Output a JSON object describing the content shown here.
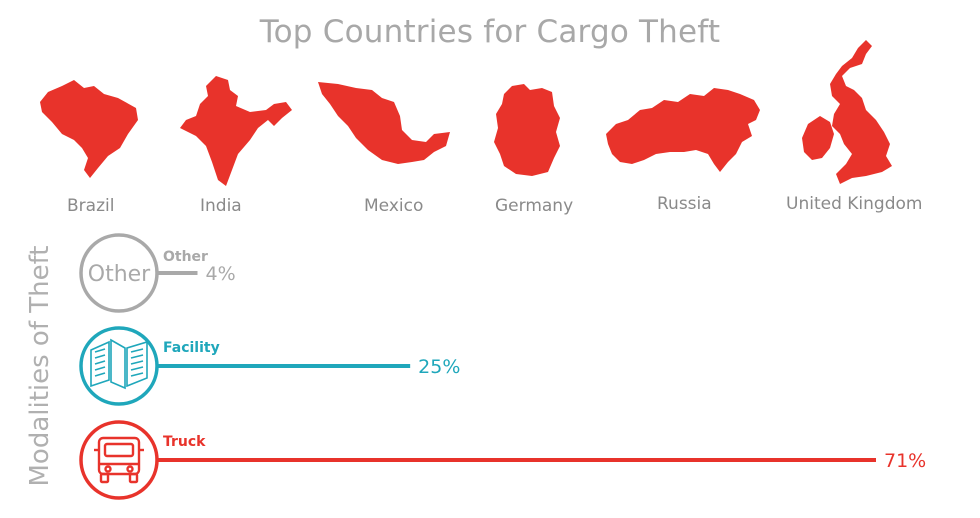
{
  "chart_data": {
    "type": "bar",
    "title": "Top Countries for Cargo Theft",
    "countries": [
      "Brazil",
      "India",
      "Mexico",
      "Germany",
      "Russia",
      "United Kingdom"
    ],
    "side_label": "Modalities of Theft",
    "series": [
      {
        "name": "Other",
        "icon_text": "Other",
        "value": 4,
        "value_label": "4%",
        "color": "#a9a9a9",
        "icon": "text-circle"
      },
      {
        "name": "Facility",
        "value": 25,
        "value_label": "25%",
        "color": "#1fa7bb",
        "icon": "building-icon"
      },
      {
        "name": "Truck",
        "value": 71,
        "value_label": "71%",
        "color": "#e8332b",
        "icon": "truck-icon"
      }
    ],
    "map_color": "#e8332b"
  }
}
